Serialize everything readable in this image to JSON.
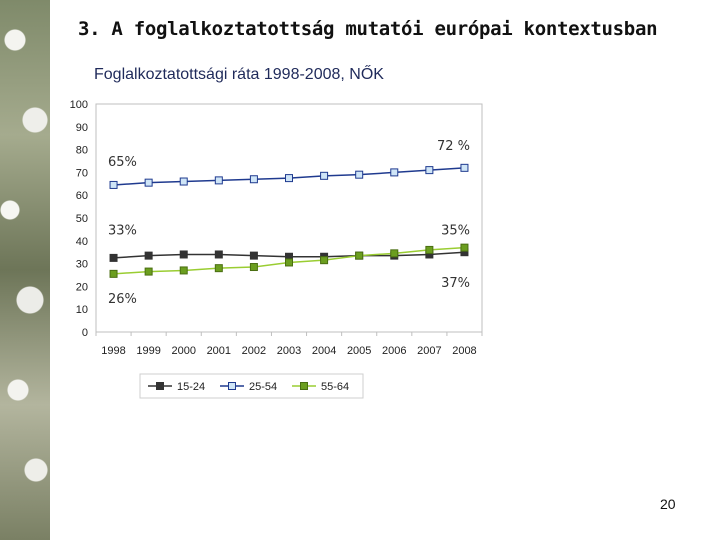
{
  "slide": {
    "title": "3. A foglalkoztatottság mutatói európai kontextusban",
    "page_number": "20"
  },
  "chart_data": {
    "type": "line",
    "title": "Foglalkoztatottsági ráta 1998-2008, NŐK",
    "x": [
      "1998",
      "1999",
      "2000",
      "2001",
      "2002",
      "2003",
      "2004",
      "2005",
      "2006",
      "2007",
      "2008"
    ],
    "ylim": [
      0,
      100
    ],
    "yticks": [
      "0",
      "10",
      "20",
      "30",
      "40",
      "50",
      "60",
      "70",
      "80",
      "90",
      "100"
    ],
    "grid": false,
    "legend_position": "bottom",
    "series": [
      {
        "name": "15-24",
        "line_color": "#333333",
        "marker_fill": "#333333",
        "marker": "square",
        "values": [
          32.5,
          33.5,
          34,
          34,
          33.5,
          33,
          33,
          33.5,
          33.5,
          34,
          35
        ]
      },
      {
        "name": "25-54",
        "line_color": "#1f3a8f",
        "marker_fill": "#cfe5f7",
        "marker": "square",
        "values": [
          64.5,
          65.5,
          66,
          66.5,
          67,
          67.5,
          68.5,
          69,
          70,
          71,
          72
        ]
      },
      {
        "name": "55-64",
        "line_color": "#9acd32",
        "marker_fill": "#6b9e1f",
        "marker": "square",
        "values": [
          25.5,
          26.5,
          27,
          28,
          28.5,
          30.5,
          31.5,
          33.5,
          34.5,
          36,
          37
        ]
      }
    ],
    "annotations": [
      {
        "text": "65%",
        "x": "1998",
        "y": 75
      },
      {
        "text": "72 %",
        "x": "2008",
        "y": 82
      },
      {
        "text": "33%",
        "x": "1998",
        "y": 45
      },
      {
        "text": "35%",
        "x": "2008",
        "y": 45
      },
      {
        "text": "26%",
        "x": "1998",
        "y": 15
      },
      {
        "text": "37%",
        "x": "2008",
        "y": 22
      }
    ]
  }
}
